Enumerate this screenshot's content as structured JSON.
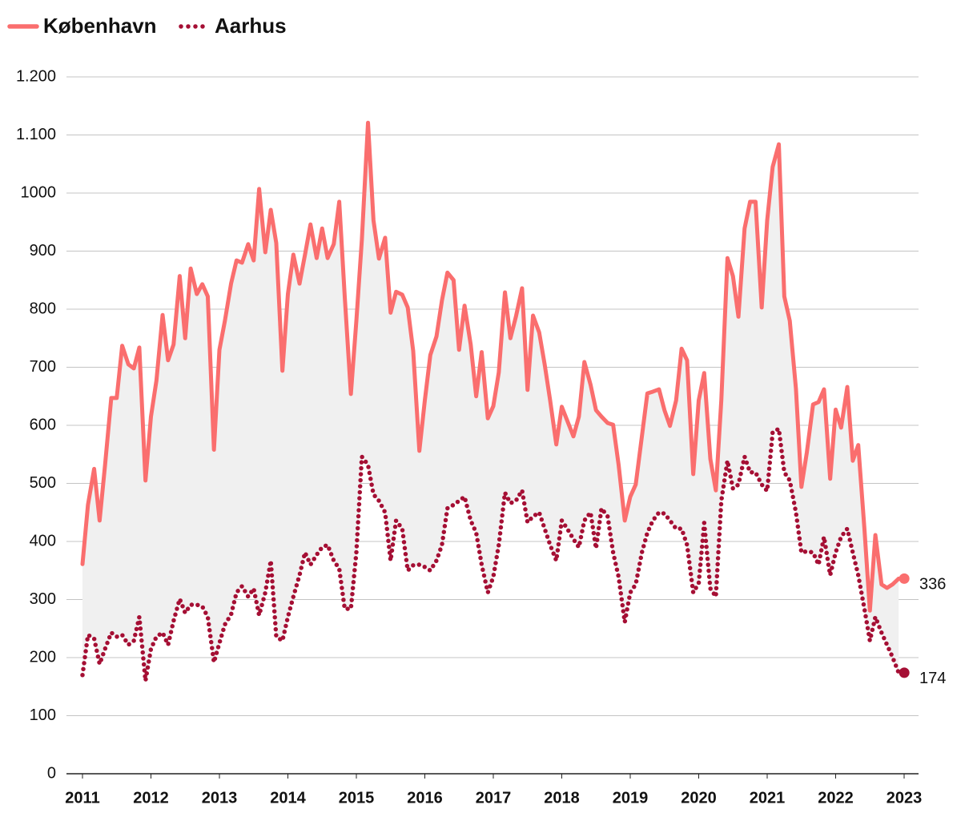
{
  "chart_data": {
    "type": "line",
    "x": [
      2011,
      2011.08,
      2011.17,
      2011.25,
      2011.33,
      2011.42,
      2011.5,
      2011.58,
      2011.67,
      2011.75,
      2011.83,
      2011.92,
      2012,
      2012.08,
      2012.17,
      2012.25,
      2012.33,
      2012.42,
      2012.5,
      2012.58,
      2012.67,
      2012.75,
      2012.83,
      2012.92,
      2013,
      2013.08,
      2013.17,
      2013.25,
      2013.33,
      2013.42,
      2013.5,
      2013.58,
      2013.67,
      2013.75,
      2013.83,
      2013.92,
      2014,
      2014.08,
      2014.17,
      2014.25,
      2014.33,
      2014.42,
      2014.5,
      2014.58,
      2014.67,
      2014.75,
      2014.83,
      2014.92,
      2015,
      2015.08,
      2015.17,
      2015.25,
      2015.33,
      2015.42,
      2015.5,
      2015.58,
      2015.67,
      2015.75,
      2015.83,
      2015.92,
      2016,
      2016.08,
      2016.17,
      2016.25,
      2016.33,
      2016.42,
      2016.5,
      2016.58,
      2016.67,
      2016.75,
      2016.83,
      2016.92,
      2017,
      2017.08,
      2017.17,
      2017.25,
      2017.33,
      2017.42,
      2017.5,
      2017.58,
      2017.67,
      2017.75,
      2017.83,
      2017.92,
      2018,
      2018.08,
      2018.17,
      2018.25,
      2018.33,
      2018.42,
      2018.5,
      2018.58,
      2018.67,
      2018.75,
      2018.83,
      2018.92,
      2019,
      2019.08,
      2019.17,
      2019.25,
      2019.33,
      2019.42,
      2019.5,
      2019.58,
      2019.67,
      2019.75,
      2019.83,
      2019.92,
      2020,
      2020.08,
      2020.17,
      2020.25,
      2020.33,
      2020.42,
      2020.5,
      2020.58,
      2020.67,
      2020.75,
      2020.83,
      2020.92,
      2021,
      2021.08,
      2021.17,
      2021.25,
      2021.33,
      2021.42,
      2021.5,
      2021.58,
      2021.67,
      2021.75,
      2021.83,
      2021.92,
      2022,
      2022.08,
      2022.17,
      2022.25,
      2022.33,
      2022.42,
      2022.5,
      2022.58,
      2022.67,
      2022.75,
      2022.83,
      2022.92
    ],
    "series": [
      {
        "name": "København",
        "color": "#fa6e6e",
        "style": "solid",
        "values": [
          361,
          463,
          525,
          436,
          532,
          647,
          647,
          737,
          705,
          698,
          734,
          505,
          615,
          677,
          790,
          712,
          739,
          857,
          750,
          870,
          826,
          843,
          822,
          558,
          730,
          780,
          844,
          884,
          880,
          912,
          884,
          1007,
          898,
          971,
          914,
          694,
          826,
          894,
          844,
          894,
          946,
          888,
          939,
          888,
          912,
          985,
          822,
          654,
          780,
          919,
          1121,
          953,
          887,
          923,
          794,
          830,
          825,
          803,
          728,
          556,
          643,
          721,
          753,
          815,
          863,
          850,
          730,
          806,
          739,
          650,
          726,
          612,
          633,
          691,
          829,
          750,
          787,
          836,
          661,
          789,
          760,
          705,
          643,
          567,
          632,
          608,
          581,
          615,
          709,
          670,
          626,
          615,
          604,
          601,
          532,
          436,
          477,
          498,
          581,
          655,
          658,
          662,
          626,
          599,
          643,
          732,
          712,
          516,
          643,
          690,
          542,
          488,
          643,
          888,
          857,
          787,
          939,
          985,
          985,
          803,
          953,
          1045,
          1084,
          822,
          780,
          663,
          494,
          554,
          636,
          640,
          662,
          508,
          627,
          596,
          666,
          539,
          566,
          422,
          281,
          411,
          326,
          320,
          326,
          336
        ]
      },
      {
        "name": "Aarhus",
        "color": "#a50f34",
        "style": "dotted",
        "values": [
          170,
          239,
          233,
          189,
          215,
          243,
          236,
          239,
          222,
          229,
          270,
          160,
          215,
          236,
          243,
          222,
          263,
          301,
          277,
          291,
          291,
          288,
          270,
          192,
          225,
          257,
          274,
          312,
          323,
          305,
          319,
          273,
          312,
          367,
          236,
          229,
          270,
          305,
          342,
          381,
          360,
          377,
          390,
          394,
          367,
          353,
          284,
          284,
          381,
          546,
          532,
          481,
          470,
          450,
          367,
          436,
          422,
          350,
          359,
          360,
          356,
          350,
          367,
          394,
          457,
          463,
          470,
          477,
          436,
          415,
          360,
          312,
          339,
          394,
          484,
          466,
          470,
          488,
          433,
          443,
          450,
          422,
          394,
          367,
          436,
          422,
          404,
          390,
          436,
          450,
          388,
          457,
          443,
          381,
          339,
          261,
          312,
          326,
          381,
          415,
          436,
          450,
          448,
          436,
          422,
          422,
          394,
          312,
          328,
          432,
          319,
          305,
          470,
          539,
          491,
          498,
          546,
          519,
          519,
          498,
          487,
          588,
          594,
          519,
          505,
          450,
          381,
          383,
          381,
          360,
          408,
          342,
          381,
          408,
          422,
          381,
          342,
          284,
          229,
          270,
          243,
          222,
          201,
          174
        ]
      }
    ],
    "xlim": [
      2011,
      2023
    ],
    "xticks": [
      2011,
      2012,
      2013,
      2014,
      2015,
      2016,
      2017,
      2018,
      2019,
      2020,
      2021,
      2022,
      2023
    ],
    "ylim": [
      0,
      1200
    ],
    "yticks": [
      0,
      100,
      200,
      300,
      400,
      500,
      600,
      700,
      800,
      900,
      1000,
      {
        "value": 1100,
        "label": "1.100"
      },
      {
        "value": 1200,
        "label": "1.200"
      }
    ],
    "grid": true,
    "legend": "top-left",
    "band_color": "#f0f0f0"
  }
}
